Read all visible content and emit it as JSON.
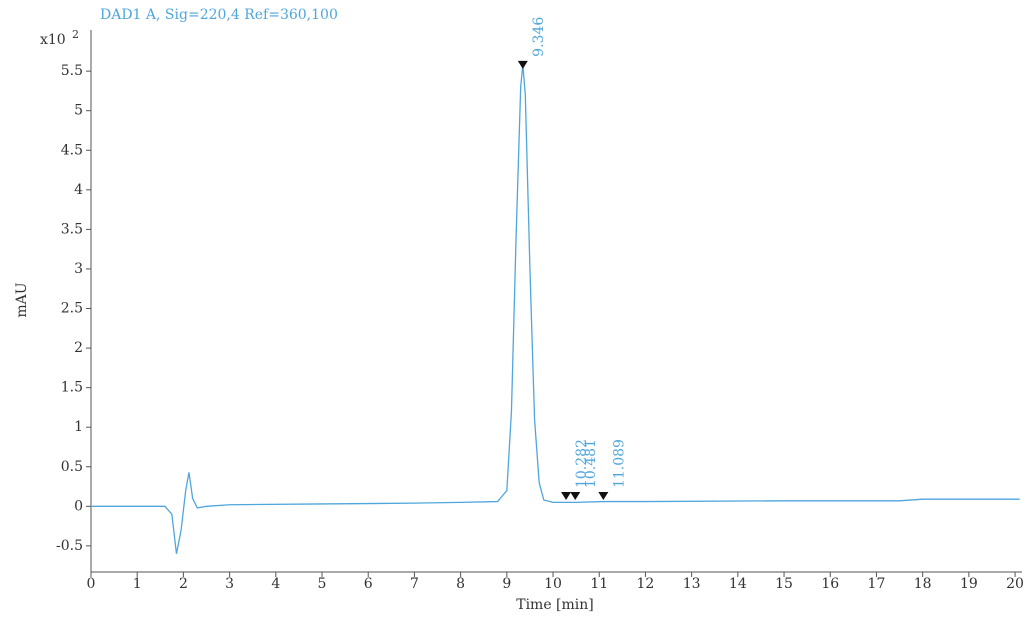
{
  "chart_data": {
    "type": "line",
    "title": "DAD1 A, Sig=220,4 Ref=360,100",
    "x_label": "Time [min]",
    "y_label": "mAU",
    "y_scale_prefix": "x10",
    "y_scale_exponent": "2",
    "x": [
      0,
      1,
      1.6,
      1.75,
      1.85,
      1.95,
      2.05,
      2.12,
      2.2,
      2.3,
      2.5,
      3,
      5,
      7,
      8,
      8.8,
      9.0,
      9.1,
      9.2,
      9.3,
      9.346,
      9.4,
      9.5,
      9.6,
      9.7,
      9.8,
      10,
      10.282,
      10.481,
      11.089,
      12,
      15,
      17.5,
      18,
      20.1
    ],
    "series": [
      {
        "name": "DAD1 A",
        "color": "#4fa6dc",
        "values": [
          0,
          0,
          0,
          -0.1,
          -0.6,
          -0.3,
          0.2,
          0.43,
          0.1,
          -0.02,
          0,
          0.02,
          0.03,
          0.04,
          0.05,
          0.06,
          0.2,
          1.2,
          3.4,
          5.3,
          5.58,
          5.2,
          3.0,
          1.1,
          0.3,
          0.08,
          0.05,
          0.05,
          0.05,
          0.06,
          0.06,
          0.07,
          0.07,
          0.09,
          0.09
        ]
      }
    ],
    "peaks": {
      "x": [
        9.346,
        10.282,
        10.481,
        11.089
      ],
      "y": [
        5.58,
        0.13,
        0.13,
        0.13
      ]
    },
    "xlim": [
      0,
      20.15
    ],
    "ylim": [
      -0.83,
      6.02
    ],
    "xticks": [
      0,
      1,
      2,
      3,
      4,
      5,
      6,
      7,
      8,
      9,
      10,
      11,
      12,
      13,
      14,
      15,
      16,
      17,
      18,
      19,
      20
    ],
    "yticks": [
      -0.5,
      0,
      0.5,
      1,
      1.5,
      2,
      2.5,
      3,
      3.5,
      4,
      4.5,
      5,
      5.5
    ]
  }
}
